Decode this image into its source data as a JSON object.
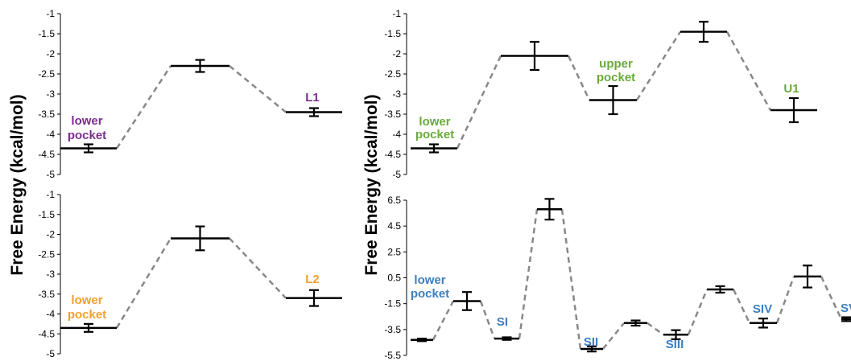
{
  "ylabel_left": "Free Energy (kcal/mol)",
  "ylabel_right": "Free Energy (kcal/mol)",
  "chart_data": [
    {
      "type": "line",
      "panel": "top-left",
      "ylabel": "",
      "ylim": [
        -5,
        -1
      ],
      "yticks": [
        -1,
        -1.5,
        -2,
        -2.5,
        -3,
        -3.5,
        -4,
        -4.5,
        -5
      ],
      "states": [
        {
          "value": -4.35,
          "error": 0.1
        },
        {
          "value": -2.3,
          "error": 0.15
        },
        {
          "value": -3.45,
          "error": 0.1
        }
      ],
      "annotations": [
        {
          "text": "lower",
          "state": 0,
          "color": "#7b2d8e"
        },
        {
          "text": "pocket",
          "state": 0,
          "color": "#7b2d8e"
        },
        {
          "text": "L1",
          "state": 2,
          "color": "#7b2d8e"
        }
      ]
    },
    {
      "type": "line",
      "panel": "bottom-left",
      "ylabel": "",
      "ylim": [
        -5,
        -1
      ],
      "yticks": [
        -1,
        -1.5,
        -2,
        -2.5,
        -3,
        -3.5,
        -4,
        -4.5,
        -5
      ],
      "states": [
        {
          "value": -4.35,
          "error": 0.1
        },
        {
          "value": -2.1,
          "error": 0.3
        },
        {
          "value": -3.6,
          "error": 0.2
        }
      ],
      "annotations": [
        {
          "text": "lower",
          "state": 0,
          "color": "#f0a030"
        },
        {
          "text": "pocket",
          "state": 0,
          "color": "#f0a030"
        },
        {
          "text": "L2",
          "state": 2,
          "color": "#f0a030"
        }
      ]
    },
    {
      "type": "line",
      "panel": "top-right",
      "ylabel": "",
      "ylim": [
        -5,
        -1
      ],
      "yticks": [
        -1,
        -1.5,
        -2,
        -2.5,
        -3,
        -3.5,
        -4,
        -4.5,
        -5
      ],
      "states": [
        {
          "value": -4.35,
          "error": 0.1
        },
        {
          "value": -2.05,
          "error": 0.35
        },
        {
          "value": -3.15,
          "error": 0.35
        },
        {
          "value": -1.45,
          "error": 0.25
        },
        {
          "value": -3.4,
          "error": 0.3
        }
      ],
      "annotations": [
        {
          "text": "lower",
          "state": 0,
          "color": "#6aaa3a"
        },
        {
          "text": "pocket",
          "state": 0,
          "color": "#6aaa3a"
        },
        {
          "text": "upper",
          "state": 2,
          "color": "#6aaa3a"
        },
        {
          "text": "pocket",
          "state": 2,
          "color": "#6aaa3a"
        },
        {
          "text": "U1",
          "state": 4,
          "color": "#6aaa3a"
        }
      ]
    },
    {
      "type": "line",
      "panel": "bottom-right",
      "ylabel": "",
      "ylim": [
        -5.5,
        6.5
      ],
      "yticks": [
        6.5,
        4.5,
        2.5,
        0.5,
        -1.5,
        -3.5,
        -5.5
      ],
      "states": [
        {
          "value": -4.3,
          "error": 0.1
        },
        {
          "value": -1.3,
          "error": 0.7
        },
        {
          "value": -4.2,
          "error": 0.1
        },
        {
          "value": 5.8,
          "error": 0.8
        },
        {
          "value": -5.0,
          "error": 0.2
        },
        {
          "value": -3.0,
          "error": 0.2
        },
        {
          "value": -3.9,
          "error": 0.35
        },
        {
          "value": -0.4,
          "error": 0.25
        },
        {
          "value": -3.0,
          "error": 0.35
        },
        {
          "value": 0.6,
          "error": 0.85
        },
        {
          "value": -2.7,
          "error": 0.15
        }
      ],
      "annotations": [
        {
          "text": "lower",
          "state": 0,
          "color": "#3a7fc1"
        },
        {
          "text": "pocket",
          "state": 0,
          "color": "#3a7fc1"
        },
        {
          "text": "SI",
          "state": 2,
          "color": "#3a7fc1"
        },
        {
          "text": "SII",
          "state": 4,
          "color": "#3a7fc1"
        },
        {
          "text": "SIII",
          "state": 6,
          "color": "#3a7fc1"
        },
        {
          "text": "SIV",
          "state": 8,
          "color": "#3a7fc1"
        },
        {
          "text": "SV",
          "state": 10,
          "color": "#3a7fc1"
        }
      ]
    }
  ]
}
